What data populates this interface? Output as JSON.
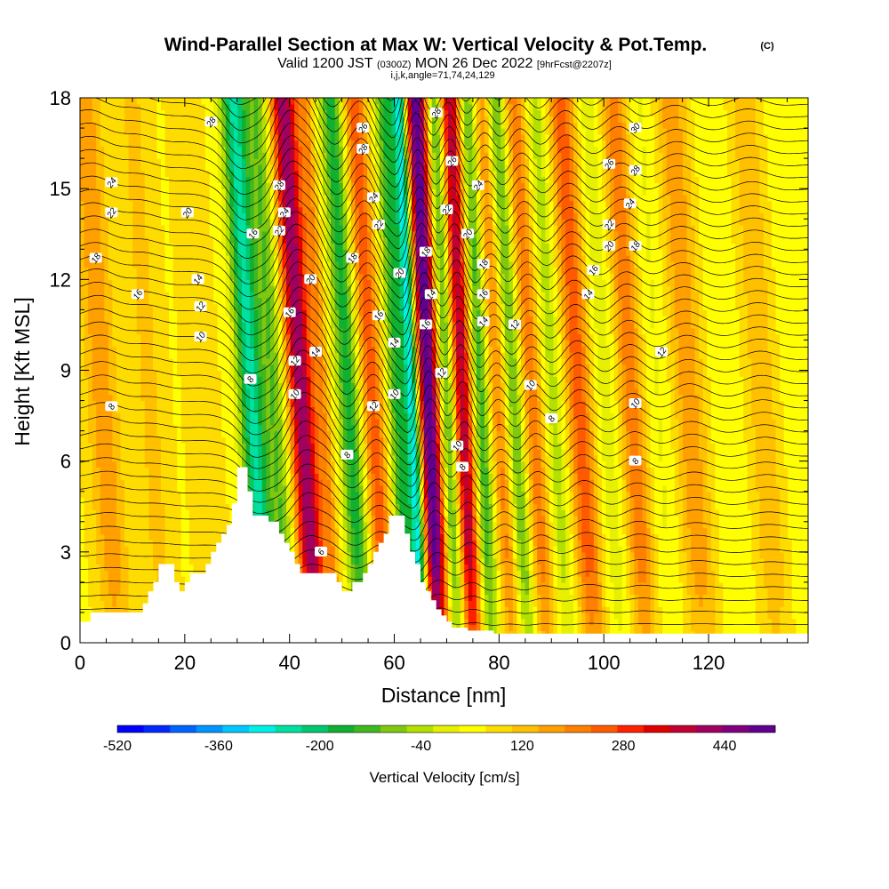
{
  "chart_data": {
    "type": "heatmap",
    "title": "Wind-Parallel Section at Max W: Vertical Velocity & Pot.Temp.",
    "copyright": "(C)",
    "subtitle": {
      "valid_prefix": "Valid 1200 JST",
      "utc": "(0300Z)",
      "date": "MON 26 Dec 2022",
      "fcst": "[9hrFcst@2207z]"
    },
    "grid_info": "i,j,k,angle=71,74,24,129",
    "xlabel": "Distance [nm]",
    "ylabel": "Height [Kft MSL]",
    "xlim": [
      0,
      139
    ],
    "ylim": [
      0,
      18
    ],
    "x_ticks": [
      0,
      20,
      40,
      60,
      80,
      100,
      120
    ],
    "y_ticks": [
      0,
      3,
      6,
      9,
      12,
      15,
      18
    ],
    "colorbar": {
      "label": "Vertical Velocity [cm/s]",
      "range": [
        -520,
        520
      ],
      "ticks": [
        -520,
        -360,
        -200,
        -40,
        120,
        280,
        440
      ],
      "colors": [
        "#0000ff",
        "#0028ff",
        "#0064ff",
        "#0096ff",
        "#00c8ff",
        "#00f0e6",
        "#00e0a0",
        "#00c870",
        "#10b030",
        "#40b820",
        "#80c810",
        "#b4e000",
        "#e6f000",
        "#ffff00",
        "#ffdc00",
        "#ffc000",
        "#ffa000",
        "#ff8000",
        "#ff5a00",
        "#ff2000",
        "#e00000",
        "#c00030",
        "#a00060",
        "#800080",
        "#600090"
      ]
    },
    "wave_columns": [
      {
        "x": 5,
        "w": 120,
        "width": 3
      },
      {
        "x": 14,
        "w": 60,
        "width": 3
      },
      {
        "x": 24,
        "w": 40,
        "width": 3
      },
      {
        "x": 33.5,
        "w": -300,
        "width": 2.5
      },
      {
        "x": 38,
        "w": -150,
        "width": 2
      },
      {
        "x": 43,
        "w": 380,
        "width": 2.5
      },
      {
        "x": 47,
        "w": 120,
        "width": 1.5
      },
      {
        "x": 52,
        "w": -220,
        "width": 2.2
      },
      {
        "x": 56.5,
        "w": 200,
        "width": 2.2
      },
      {
        "x": 61,
        "w": -200,
        "width": 1.8
      },
      {
        "x": 64,
        "w": -420,
        "width": 1.5
      },
      {
        "x": 67,
        "w": 470,
        "width": 2.5
      },
      {
        "x": 70.5,
        "w": -250,
        "width": 1.8
      },
      {
        "x": 73.5,
        "w": 350,
        "width": 2
      },
      {
        "x": 77,
        "w": -200,
        "width": 1.8
      },
      {
        "x": 80.5,
        "w": 150,
        "width": 2
      },
      {
        "x": 83.5,
        "w": -180,
        "width": 1.8
      },
      {
        "x": 87,
        "w": 160,
        "width": 2.2
      },
      {
        "x": 91,
        "w": -100,
        "width": 2
      },
      {
        "x": 96,
        "w": 200,
        "width": 2.5
      },
      {
        "x": 101,
        "w": -60,
        "width": 2.5
      },
      {
        "x": 106,
        "w": 160,
        "width": 2.5
      },
      {
        "x": 111,
        "w": -40,
        "width": 2.5
      },
      {
        "x": 117,
        "w": 120,
        "width": 3
      },
      {
        "x": 124,
        "w": -30,
        "width": 3
      },
      {
        "x": 131,
        "w": 80,
        "width": 3
      },
      {
        "x": 137,
        "w": -20,
        "width": 3
      }
    ],
    "terrain": [
      [
        0,
        0.7
      ],
      [
        2,
        0.7
      ],
      [
        2,
        1.0
      ],
      [
        12,
        1.0
      ],
      [
        12,
        1.3
      ],
      [
        13,
        1.3
      ],
      [
        13,
        1.7
      ],
      [
        14,
        1.7
      ],
      [
        14,
        2.0
      ],
      [
        15,
        2.0
      ],
      [
        15,
        2.6
      ],
      [
        18,
        2.6
      ],
      [
        18,
        2.0
      ],
      [
        19,
        2.0
      ],
      [
        19,
        1.7
      ],
      [
        20,
        1.7
      ],
      [
        20,
        2.0
      ],
      [
        21,
        2.0
      ],
      [
        21,
        2.3
      ],
      [
        24,
        2.3
      ],
      [
        24,
        2.6
      ],
      [
        25,
        2.6
      ],
      [
        25,
        3.0
      ],
      [
        26,
        3.0
      ],
      [
        26,
        3.3
      ],
      [
        27,
        3.3
      ],
      [
        27,
        3.6
      ],
      [
        28,
        3.6
      ],
      [
        28,
        3.9
      ],
      [
        29,
        3.9
      ],
      [
        29,
        4.6
      ],
      [
        30,
        4.6
      ],
      [
        30,
        5.8
      ],
      [
        32,
        5.8
      ],
      [
        32,
        5.0
      ],
      [
        33,
        5.0
      ],
      [
        33,
        4.2
      ],
      [
        36,
        4.2
      ],
      [
        36,
        4.0
      ],
      [
        38,
        4.0
      ],
      [
        38,
        3.6
      ],
      [
        39,
        3.6
      ],
      [
        39,
        3.3
      ],
      [
        40,
        3.3
      ],
      [
        40,
        3.0
      ],
      [
        41,
        3.0
      ],
      [
        41,
        2.6
      ],
      [
        42,
        2.6
      ],
      [
        42,
        2.3
      ],
      [
        49,
        2.3
      ],
      [
        49,
        2.0
      ],
      [
        50,
        2.0
      ],
      [
        50,
        1.7
      ],
      [
        52,
        1.7
      ],
      [
        52,
        2.0
      ],
      [
        54,
        2.0
      ],
      [
        54,
        2.3
      ],
      [
        55,
        2.3
      ],
      [
        55,
        2.6
      ],
      [
        56,
        2.6
      ],
      [
        56,
        3.0
      ],
      [
        57,
        3.0
      ],
      [
        57,
        3.3
      ],
      [
        58,
        3.3
      ],
      [
        58,
        3.6
      ],
      [
        59,
        3.6
      ],
      [
        59,
        4.2
      ],
      [
        62,
        4.2
      ],
      [
        62,
        3.6
      ],
      [
        63,
        3.6
      ],
      [
        63,
        3.0
      ],
      [
        64,
        3.0
      ],
      [
        64,
        2.6
      ],
      [
        65,
        2.6
      ],
      [
        65,
        2.0
      ],
      [
        66,
        2.0
      ],
      [
        66,
        1.7
      ],
      [
        67,
        1.7
      ],
      [
        67,
        1.4
      ],
      [
        68,
        1.4
      ],
      [
        68,
        1.1
      ],
      [
        69,
        1.1
      ],
      [
        69,
        0.9
      ],
      [
        70,
        0.9
      ],
      [
        70,
        0.7
      ],
      [
        71,
        0.7
      ],
      [
        71,
        0.5
      ],
      [
        74,
        0.5
      ],
      [
        74,
        0.4
      ],
      [
        79,
        0.4
      ],
      [
        79,
        0.3
      ],
      [
        139,
        0.3
      ]
    ],
    "contour_labels": [
      {
        "x": 6,
        "y": 7.8,
        "text": "8"
      },
      {
        "x": 3,
        "y": 12.7,
        "text": "18"
      },
      {
        "x": 6,
        "y": 14.2,
        "text": "22"
      },
      {
        "x": 6,
        "y": 15.2,
        "text": "24"
      },
      {
        "x": 11,
        "y": 11.5,
        "text": "16"
      },
      {
        "x": 23,
        "y": 10.1,
        "text": "10"
      },
      {
        "x": 23,
        "y": 11.1,
        "text": "12"
      },
      {
        "x": 22.5,
        "y": 12.0,
        "text": "14"
      },
      {
        "x": 20.5,
        "y": 14.2,
        "text": "20"
      },
      {
        "x": 25,
        "y": 17.2,
        "text": "28"
      },
      {
        "x": 32.5,
        "y": 8.7,
        "text": "8"
      },
      {
        "x": 33,
        "y": 13.5,
        "text": "16"
      },
      {
        "x": 38,
        "y": 15.1,
        "text": "28"
      },
      {
        "x": 39,
        "y": 14.2,
        "text": "24"
      },
      {
        "x": 38,
        "y": 13.6,
        "text": "22"
      },
      {
        "x": 40,
        "y": 10.9,
        "text": "16"
      },
      {
        "x": 41,
        "y": 9.3,
        "text": "12"
      },
      {
        "x": 41,
        "y": 8.2,
        "text": "10"
      },
      {
        "x": 44,
        "y": 12.0,
        "text": "20"
      },
      {
        "x": 45,
        "y": 9.6,
        "text": "14"
      },
      {
        "x": 46,
        "y": 3.0,
        "text": "6"
      },
      {
        "x": 51,
        "y": 6.2,
        "text": "8"
      },
      {
        "x": 52,
        "y": 12.7,
        "text": "18"
      },
      {
        "x": 54,
        "y": 16.3,
        "text": "28"
      },
      {
        "x": 54,
        "y": 17.0,
        "text": "26"
      },
      {
        "x": 56,
        "y": 14.7,
        "text": "24"
      },
      {
        "x": 57,
        "y": 13.8,
        "text": "22"
      },
      {
        "x": 57,
        "y": 10.8,
        "text": "16"
      },
      {
        "x": 56,
        "y": 7.8,
        "text": "12"
      },
      {
        "x": 60,
        "y": 8.2,
        "text": "10"
      },
      {
        "x": 60,
        "y": 9.9,
        "text": "14"
      },
      {
        "x": 61,
        "y": 12.2,
        "text": "20"
      },
      {
        "x": 66,
        "y": 12.9,
        "text": "18"
      },
      {
        "x": 66,
        "y": 10.5,
        "text": "16"
      },
      {
        "x": 67,
        "y": 11.5,
        "text": "14"
      },
      {
        "x": 68,
        "y": 17.5,
        "text": "28"
      },
      {
        "x": 71,
        "y": 15.9,
        "text": "26"
      },
      {
        "x": 70,
        "y": 14.3,
        "text": "22"
      },
      {
        "x": 69,
        "y": 8.9,
        "text": "12"
      },
      {
        "x": 72,
        "y": 6.5,
        "text": "10"
      },
      {
        "x": 73,
        "y": 5.8,
        "text": "8"
      },
      {
        "x": 74,
        "y": 13.5,
        "text": "20"
      },
      {
        "x": 76,
        "y": 15.1,
        "text": "24"
      },
      {
        "x": 77,
        "y": 12.5,
        "text": "18"
      },
      {
        "x": 77,
        "y": 11.5,
        "text": "16"
      },
      {
        "x": 77,
        "y": 10.6,
        "text": "14"
      },
      {
        "x": 83,
        "y": 10.5,
        "text": "12"
      },
      {
        "x": 86,
        "y": 8.5,
        "text": "10"
      },
      {
        "x": 90,
        "y": 7.4,
        "text": "8"
      },
      {
        "x": 97,
        "y": 11.5,
        "text": "14"
      },
      {
        "x": 98,
        "y": 12.3,
        "text": "16"
      },
      {
        "x": 101,
        "y": 13.1,
        "text": "20"
      },
      {
        "x": 101,
        "y": 13.8,
        "text": "22"
      },
      {
        "x": 101,
        "y": 15.8,
        "text": "26"
      },
      {
        "x": 105,
        "y": 14.5,
        "text": "24"
      },
      {
        "x": 106,
        "y": 15.6,
        "text": "28"
      },
      {
        "x": 106,
        "y": 17.0,
        "text": "30"
      },
      {
        "x": 106,
        "y": 13.1,
        "text": "18"
      },
      {
        "x": 106,
        "y": 7.9,
        "text": "10"
      },
      {
        "x": 106,
        "y": 6.0,
        "text": "8"
      },
      {
        "x": 111,
        "y": 9.6,
        "text": "12"
      }
    ]
  }
}
